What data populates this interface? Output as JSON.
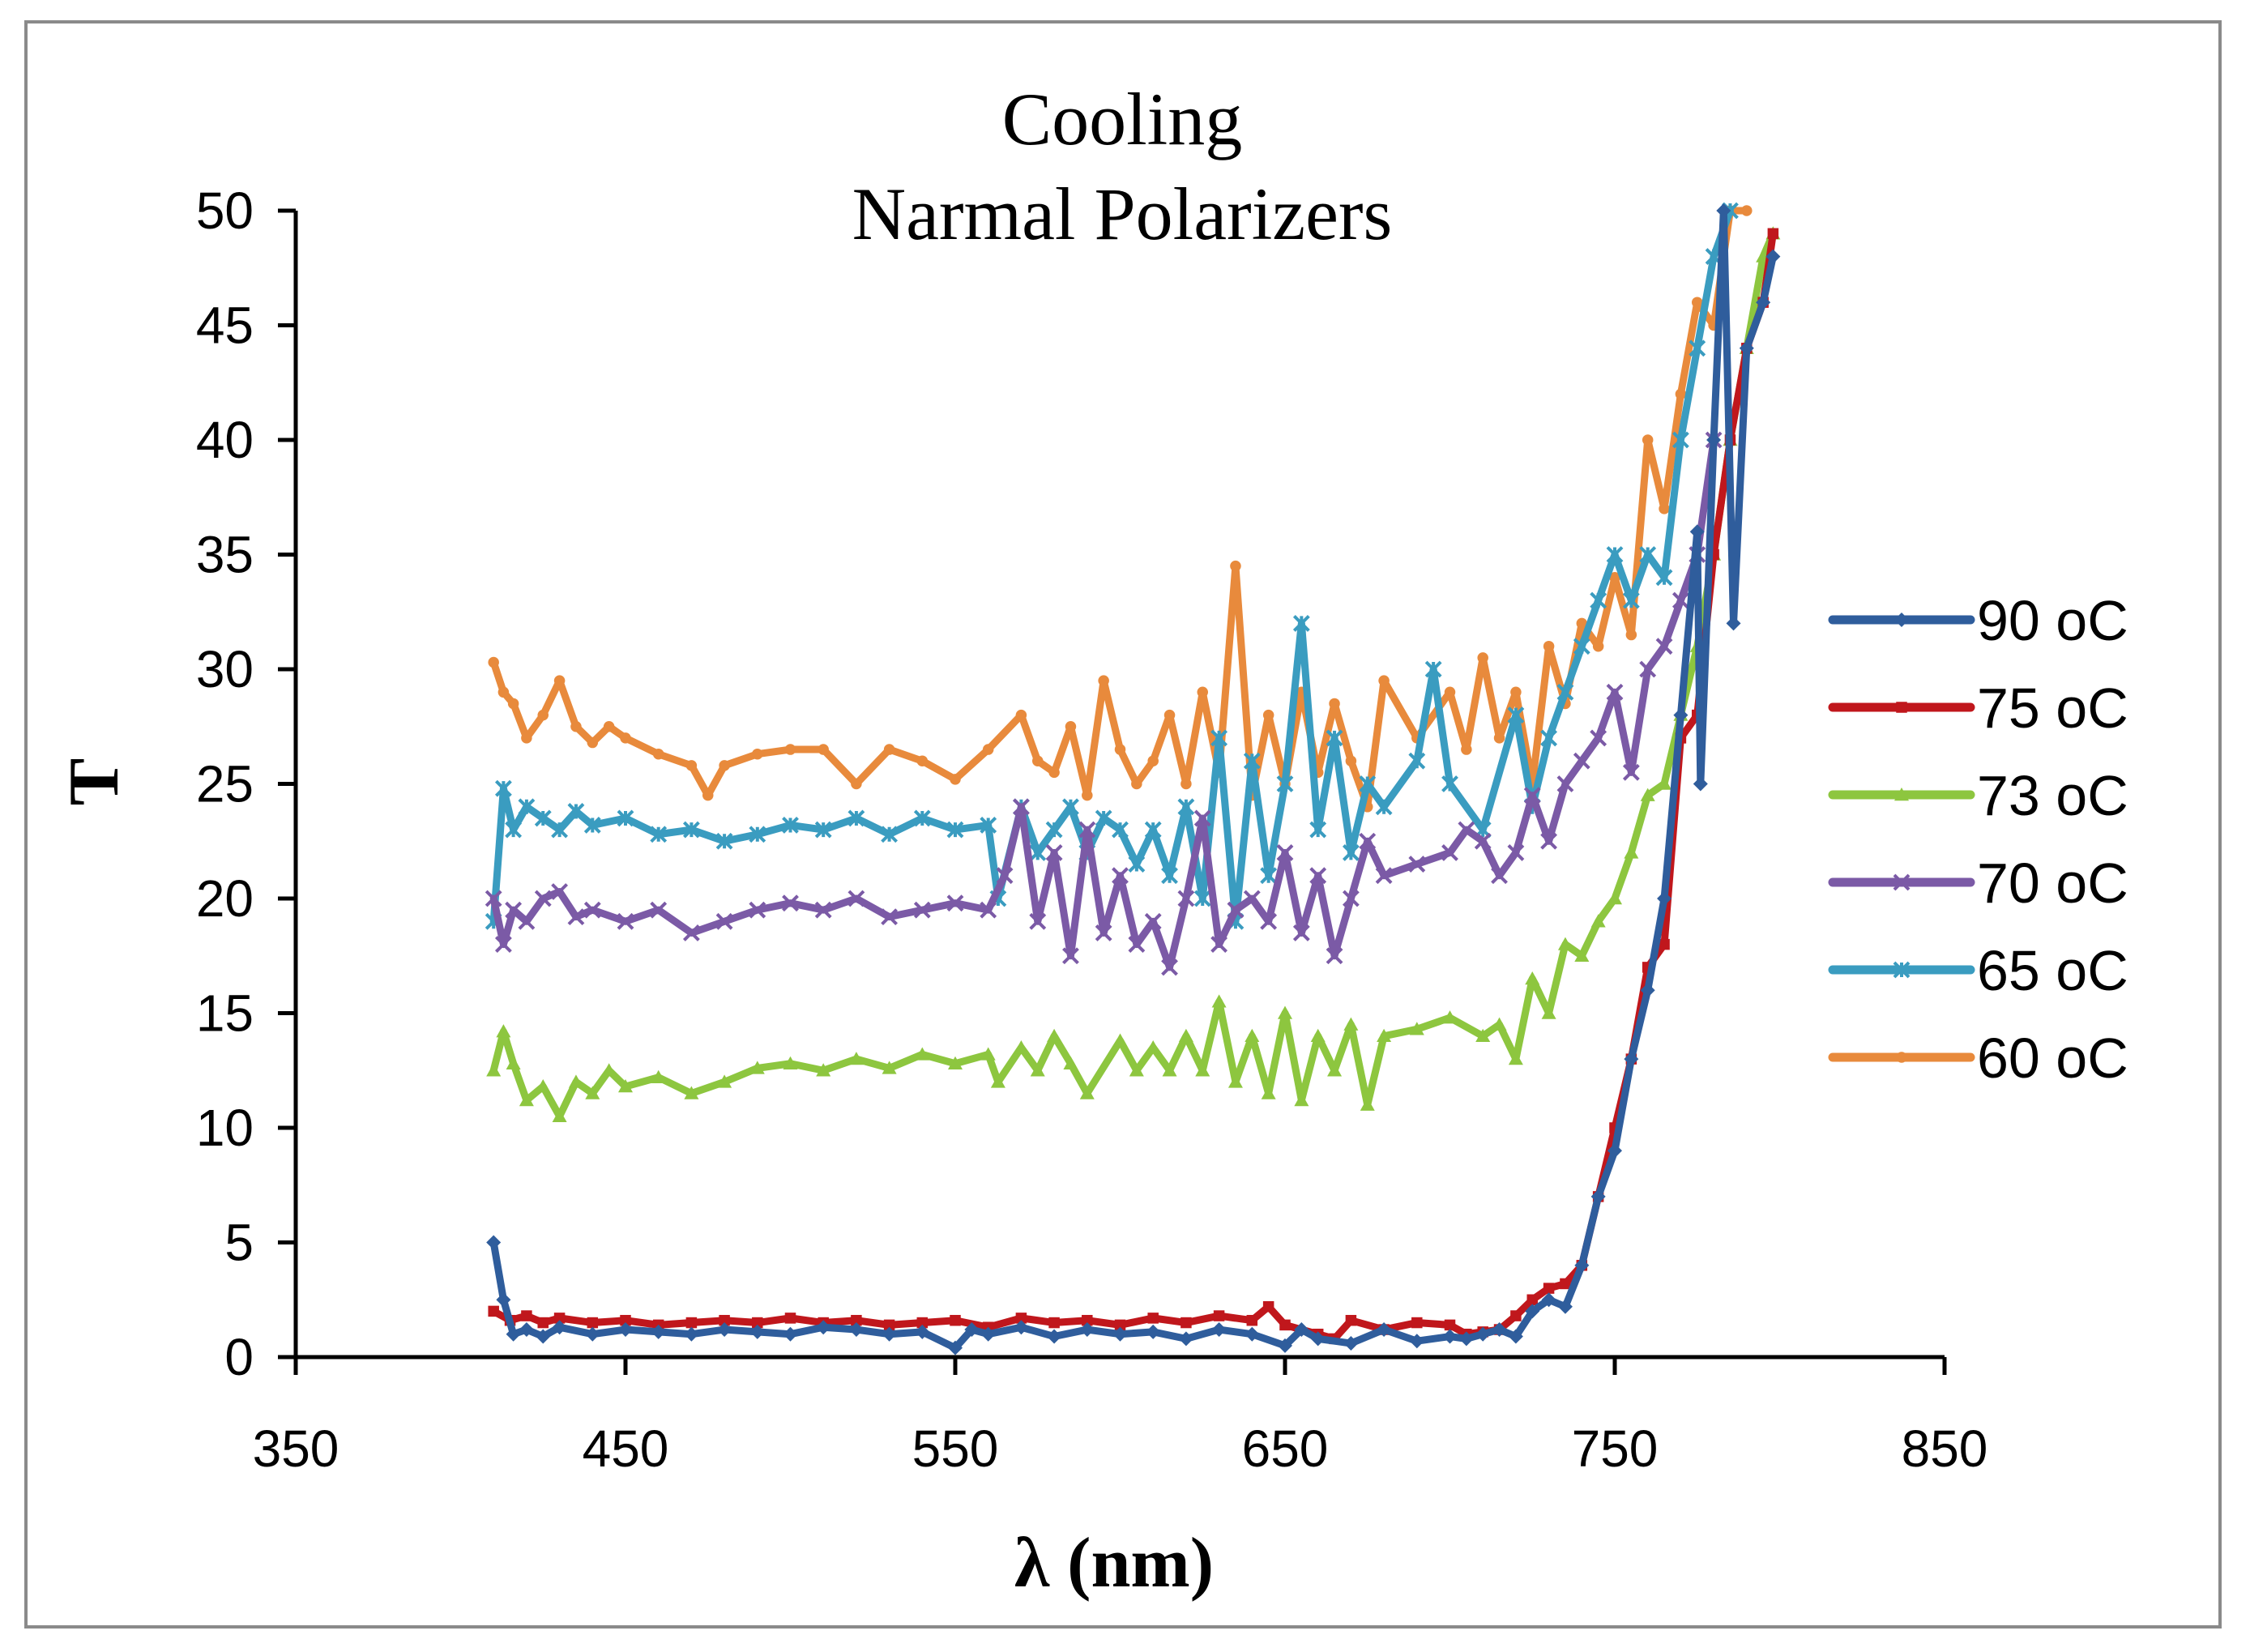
{
  "chart_data": {
    "type": "line",
    "title_lines": [
      "Cooling",
      "Narmal Polarizers"
    ],
    "xlabel": "λ (nm)",
    "ylabel": "T",
    "xlim": [
      350,
      850
    ],
    "ylim": [
      0,
      50
    ],
    "xticks": [
      350,
      450,
      550,
      650,
      750,
      850
    ],
    "yticks": [
      0,
      5,
      10,
      15,
      20,
      25,
      30,
      35,
      40,
      45,
      50
    ],
    "grid": false,
    "legend_position": "right",
    "series": [
      {
        "name": "90 oC",
        "color": "#2f5d9c",
        "marker": "diamond",
        "x": [
          410,
          413,
          416,
          420,
          425,
          430,
          440,
          450,
          460,
          470,
          480,
          490,
          500,
          510,
          520,
          530,
          540,
          550,
          555,
          560,
          570,
          580,
          590,
          600,
          610,
          620,
          630,
          640,
          650,
          655,
          660,
          670,
          680,
          690,
          700,
          705,
          710,
          715,
          720,
          725,
          730,
          735,
          740,
          745,
          750,
          755,
          760,
          765,
          770,
          775,
          776,
          780,
          783,
          786,
          790,
          795,
          798
        ],
        "y": [
          5.0,
          2.5,
          1.0,
          1.2,
          0.9,
          1.3,
          1.0,
          1.2,
          1.1,
          1.0,
          1.2,
          1.1,
          1.0,
          1.3,
          1.2,
          1.0,
          1.1,
          0.4,
          1.2,
          1.0,
          1.3,
          0.9,
          1.2,
          1.0,
          1.1,
          0.8,
          1.2,
          1.0,
          0.5,
          1.2,
          0.8,
          0.6,
          1.2,
          0.7,
          0.9,
          0.8,
          1.0,
          1.2,
          0.9,
          2.0,
          2.5,
          2.2,
          4.0,
          7.0,
          9.0,
          13.0,
          16.0,
          20.0,
          28.0,
          36.0,
          25.0,
          40.0,
          50.0,
          32.0,
          44.0,
          46.0,
          48.0
        ]
      },
      {
        "name": "75 oC",
        "color": "#c0171c",
        "marker": "square",
        "x": [
          410,
          415,
          420,
          425,
          430,
          440,
          450,
          460,
          470,
          480,
          490,
          500,
          510,
          520,
          530,
          540,
          550,
          560,
          570,
          580,
          590,
          600,
          610,
          620,
          630,
          640,
          645,
          650,
          660,
          665,
          670,
          680,
          690,
          700,
          705,
          710,
          715,
          720,
          725,
          730,
          735,
          740,
          745,
          750,
          755,
          760,
          765,
          770,
          775,
          780,
          785,
          790,
          795,
          798
        ],
        "y": [
          2.0,
          1.6,
          1.8,
          1.5,
          1.7,
          1.5,
          1.6,
          1.4,
          1.5,
          1.6,
          1.5,
          1.7,
          1.5,
          1.6,
          1.4,
          1.5,
          1.6,
          1.3,
          1.7,
          1.5,
          1.6,
          1.4,
          1.7,
          1.5,
          1.8,
          1.6,
          2.2,
          1.4,
          1.0,
          0.8,
          1.6,
          1.2,
          1.5,
          1.4,
          1.0,
          1.1,
          1.2,
          1.8,
          2.5,
          3.0,
          3.2,
          4.0,
          7.0,
          10.0,
          13.0,
          17.0,
          18.0,
          27.0,
          28.0,
          35.0,
          40.0,
          44.0,
          46.0,
          49.0
        ]
      },
      {
        "name": "73 oC",
        "color": "#8dc63f",
        "marker": "triangle",
        "x": [
          410,
          413,
          416,
          420,
          425,
          430,
          435,
          440,
          445,
          450,
          460,
          470,
          480,
          490,
          500,
          510,
          520,
          530,
          540,
          550,
          560,
          563,
          570,
          575,
          580,
          585,
          590,
          600,
          605,
          610,
          615,
          620,
          625,
          630,
          635,
          640,
          645,
          650,
          655,
          660,
          665,
          670,
          675,
          680,
          690,
          700,
          710,
          715,
          720,
          725,
          730,
          735,
          740,
          745,
          750,
          755,
          760,
          765,
          770,
          775,
          780,
          785,
          790,
          795,
          798
        ],
        "y": [
          12.5,
          14.2,
          12.8,
          11.2,
          11.8,
          10.5,
          12.0,
          11.5,
          12.5,
          11.8,
          12.2,
          11.5,
          12.0,
          12.6,
          12.8,
          12.5,
          13.0,
          12.6,
          13.2,
          12.8,
          13.2,
          12.0,
          13.5,
          12.5,
          14.0,
          12.8,
          11.5,
          13.8,
          12.5,
          13.5,
          12.5,
          14.0,
          12.5,
          15.5,
          12.0,
          14.0,
          11.5,
          15.0,
          11.2,
          14.0,
          12.5,
          14.5,
          11.0,
          14.0,
          14.3,
          14.8,
          14.0,
          14.5,
          13.0,
          16.5,
          15.0,
          18.0,
          17.5,
          19.0,
          20.0,
          22.0,
          24.5,
          25.0,
          28.0,
          31.0,
          35.0,
          40.0,
          44.0,
          48.0,
          49.0
        ]
      },
      {
        "name": "70 oC",
        "color": "#7b5aa6",
        "marker": "x",
        "x": [
          410,
          413,
          416,
          420,
          425,
          430,
          435,
          440,
          450,
          460,
          470,
          480,
          490,
          500,
          510,
          520,
          530,
          540,
          550,
          560,
          565,
          570,
          575,
          580,
          585,
          590,
          595,
          600,
          605,
          610,
          615,
          620,
          625,
          630,
          635,
          640,
          645,
          650,
          655,
          660,
          665,
          670,
          675,
          680,
          690,
          700,
          705,
          710,
          715,
          720,
          725,
          730,
          735,
          740,
          745,
          750,
          755,
          760,
          765,
          770,
          775,
          780
        ],
        "y": [
          20.0,
          18.0,
          19.5,
          19.0,
          20.0,
          20.3,
          19.2,
          19.5,
          19.0,
          19.5,
          18.5,
          19.0,
          19.5,
          19.8,
          19.5,
          20.0,
          19.2,
          19.5,
          19.8,
          19.5,
          21.0,
          24.0,
          19.0,
          22.0,
          17.5,
          23.0,
          18.5,
          21.0,
          18.0,
          19.0,
          17.0,
          20.0,
          23.5,
          18.0,
          19.5,
          20.0,
          19.0,
          22.0,
          18.5,
          21.0,
          17.5,
          20.0,
          22.5,
          21.0,
          21.5,
          22.0,
          23.0,
          22.5,
          21.0,
          22.0,
          24.5,
          22.5,
          25.0,
          26.0,
          27.0,
          29.0,
          25.5,
          30.0,
          31.0,
          33.0,
          35.0,
          40.0
        ]
      },
      {
        "name": "65 oC",
        "color": "#3a9cc0",
        "marker": "star",
        "x": [
          410,
          413,
          416,
          420,
          425,
          430,
          435,
          440,
          450,
          460,
          470,
          480,
          490,
          500,
          510,
          520,
          530,
          540,
          550,
          560,
          563,
          570,
          575,
          580,
          585,
          590,
          595,
          600,
          605,
          610,
          615,
          620,
          625,
          630,
          635,
          640,
          645,
          650,
          655,
          660,
          665,
          670,
          675,
          680,
          690,
          695,
          700,
          710,
          720,
          725,
          730,
          735,
          740,
          745,
          750,
          755,
          760,
          765,
          770,
          775,
          780,
          785
        ],
        "y": [
          19.0,
          24.8,
          23.0,
          24.0,
          23.5,
          23.0,
          23.8,
          23.2,
          23.5,
          22.8,
          23.0,
          22.5,
          22.8,
          23.2,
          23.0,
          23.5,
          22.8,
          23.5,
          23.0,
          23.2,
          20.0,
          24.0,
          22.0,
          23.0,
          24.0,
          22.0,
          23.5,
          23.0,
          21.5,
          23.0,
          21.0,
          24.0,
          20.0,
          27.0,
          19.0,
          26.0,
          21.0,
          25.0,
          32.0,
          23.0,
          27.0,
          22.0,
          25.0,
          24.0,
          26.0,
          30.0,
          25.0,
          23.0,
          28.0,
          24.0,
          27.0,
          29.0,
          31.0,
          33.0,
          35.0,
          33.0,
          35.0,
          34.0,
          40.0,
          44.0,
          48.0,
          50.0
        ]
      },
      {
        "name": "60 oC",
        "color": "#e88a3c",
        "marker": "circle",
        "x": [
          410,
          413,
          416,
          420,
          425,
          430,
          435,
          440,
          445,
          450,
          460,
          470,
          475,
          480,
          490,
          500,
          510,
          520,
          530,
          540,
          550,
          560,
          570,
          575,
          580,
          585,
          590,
          595,
          600,
          605,
          610,
          615,
          620,
          625,
          630,
          635,
          640,
          645,
          650,
          655,
          660,
          665,
          670,
          675,
          680,
          690,
          700,
          705,
          710,
          715,
          720,
          725,
          730,
          735,
          740,
          745,
          750,
          755,
          760,
          765,
          770,
          775,
          780,
          785,
          790
        ],
        "y": [
          30.3,
          29.0,
          28.5,
          27.0,
          28.0,
          29.5,
          27.5,
          26.8,
          27.5,
          27.0,
          26.3,
          25.8,
          24.5,
          25.8,
          26.3,
          26.5,
          26.5,
          25.0,
          26.5,
          26.0,
          25.2,
          26.5,
          28.0,
          26.0,
          25.5,
          27.5,
          24.5,
          29.5,
          26.5,
          25.0,
          26.0,
          28.0,
          25.0,
          29.0,
          25.5,
          34.5,
          24.5,
          28.0,
          25.0,
          29.0,
          25.5,
          28.5,
          26.0,
          24.0,
          29.5,
          27.0,
          29.0,
          26.5,
          30.5,
          27.0,
          29.0,
          25.0,
          31.0,
          28.5,
          32.0,
          31.0,
          34.0,
          31.5,
          40.0,
          37.0,
          42.0,
          46.0,
          45.0,
          50.0,
          50.0
        ]
      }
    ]
  }
}
